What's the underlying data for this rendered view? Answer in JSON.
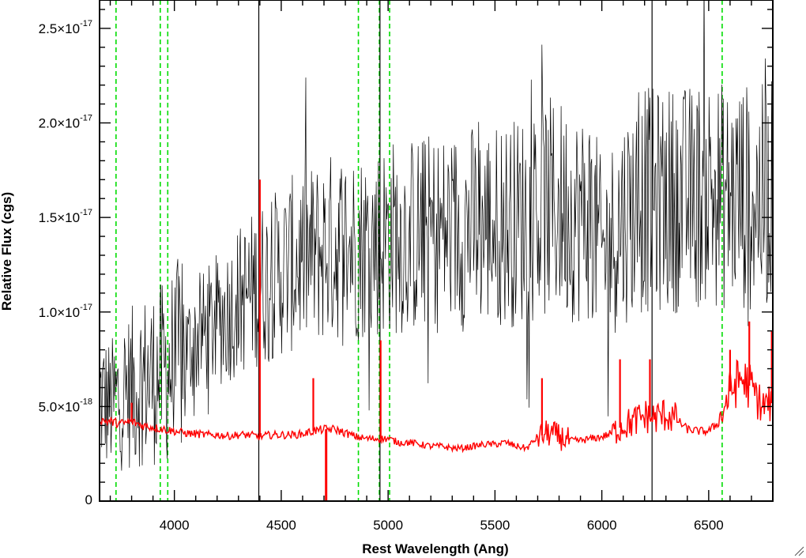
{
  "chart_data": {
    "type": "line",
    "title": "",
    "xlabel": "Rest Wavelength (Ang)",
    "ylabel": "Relative Flux (cgs)",
    "xlim": [
      3650,
      6800
    ],
    "ylim": [
      0,
      2.65e-17
    ],
    "x_ticks": [
      {
        "value": 4000,
        "label": "4000"
      },
      {
        "value": 4500,
        "label": "4500"
      },
      {
        "value": 5000,
        "label": "5000"
      },
      {
        "value": 5500,
        "label": "5500"
      },
      {
        "value": 6000,
        "label": "6000"
      },
      {
        "value": 6500,
        "label": "6500"
      }
    ],
    "y_ticks": [
      {
        "value": 0,
        "mantissa": "0",
        "exponent": ""
      },
      {
        "value": 5e-18,
        "mantissa": "5.0×10",
        "exponent": "-18"
      },
      {
        "value": 1e-17,
        "mantissa": "1.0×10",
        "exponent": "-17"
      },
      {
        "value": 1.5e-17,
        "mantissa": "1.5×10",
        "exponent": "-17"
      },
      {
        "value": 2e-17,
        "mantissa": "2.0×10",
        "exponent": "-17"
      },
      {
        "value": 2.5e-17,
        "mantissa": "2.5×10",
        "exponent": "-17"
      }
    ],
    "grid": false,
    "series": [
      {
        "color": "#000000",
        "style": "solid",
        "x": [
          3650,
          3700,
          3750,
          3800,
          3850,
          3900,
          3950,
          4000,
          4050,
          4100,
          4150,
          4200,
          4250,
          4300,
          4350,
          4400,
          4450,
          4500,
          4550,
          4600,
          4650,
          4700,
          4750,
          4800,
          4850,
          4900,
          4950,
          5000,
          5050,
          5100,
          5150,
          5200,
          5250,
          5300,
          5350,
          5400,
          5450,
          5500,
          5550,
          5600,
          5650,
          5700,
          5750,
          5800,
          5850,
          5900,
          5950,
          6000,
          6050,
          6100,
          6150,
          6200,
          6250,
          6300,
          6350,
          6400,
          6450,
          6500,
          6550,
          6600,
          6650,
          6700,
          6750,
          6800
        ],
        "y": [
          5.5e-18,
          5e-18,
          5.6e-18,
          6e-18,
          6.4e-18,
          6.6e-18,
          6.8e-18,
          7.3e-18,
          7.9e-18,
          8.5e-18,
          9e-18,
          9.5e-18,
          1e-17,
          1.06e-17,
          1.1e-17,
          1.15e-17,
          1.18e-17,
          1.22e-17,
          1.25e-17,
          1.28e-17,
          1.3e-17,
          1.33e-17,
          1.35e-17,
          1.36e-17,
          1.35e-17,
          1.36e-17,
          1.38e-17,
          1.4e-17,
          1.4e-17,
          1.4e-17,
          1.41e-17,
          1.42e-17,
          1.42e-17,
          1.43e-17,
          1.44e-17,
          1.45e-17,
          1.45e-17,
          1.46e-17,
          1.47e-17,
          1.48e-17,
          1.5e-17,
          1.52e-17,
          1.55e-17,
          1.55e-17,
          1.53e-17,
          1.5e-17,
          1.52e-17,
          1.3e-17,
          1.4e-17,
          1.5e-17,
          1.55e-17,
          1.6e-17,
          1.58e-17,
          1.6e-17,
          1.6e-17,
          1.6e-17,
          1.62e-17,
          1.65e-17,
          1.62e-17,
          1.6e-17,
          1.62e-17,
          1.6e-17,
          1.6e-17,
          1.62e-17
        ],
        "scatter_amplitude": 0.38,
        "spikes": [
          {
            "x": 4395,
            "y_min": 0,
            "y_max": 2.65e-17
          },
          {
            "x": 4962,
            "y_min": 0,
            "y_max": 2.65e-17
          },
          {
            "x": 6235,
            "y_min": 0,
            "y_max": 2.65e-17
          }
        ]
      },
      {
        "color": "#ff0000",
        "style": "solid",
        "x": [
          3650,
          3700,
          3750,
          3800,
          3850,
          3900,
          3950,
          4000,
          4050,
          4100,
          4150,
          4200,
          4250,
          4300,
          4350,
          4400,
          4450,
          4500,
          4550,
          4600,
          4650,
          4700,
          4750,
          4800,
          4850,
          4900,
          4950,
          5000,
          5050,
          5100,
          5150,
          5200,
          5250,
          5300,
          5350,
          5400,
          5450,
          5500,
          5550,
          5600,
          5650,
          5700,
          5750,
          5800,
          5850,
          5900,
          5950,
          6000,
          6050,
          6100,
          6150,
          6200,
          6250,
          6300,
          6350,
          6400,
          6450,
          6500,
          6550,
          6600,
          6650,
          6700,
          6750,
          6800
        ],
        "y": [
          4.3e-18,
          4.2e-18,
          4.1e-18,
          4.2e-18,
          4e-18,
          3.9e-18,
          3.8e-18,
          3.7e-18,
          3.6e-18,
          3.55e-18,
          3.5e-18,
          3.5e-18,
          3.45e-18,
          3.5e-18,
          3.5e-18,
          3.4e-18,
          3.5e-18,
          3.5e-18,
          3.5e-18,
          3.55e-18,
          3.7e-18,
          3.8e-18,
          3.8e-18,
          3.6e-18,
          3.4e-18,
          3.3e-18,
          3.3e-18,
          3.3e-18,
          3.1e-18,
          3.1e-18,
          3e-18,
          2.9e-18,
          2.9e-18,
          2.8e-18,
          2.8e-18,
          2.9e-18,
          3e-18,
          3e-18,
          3.1e-18,
          2.9e-18,
          2.8e-18,
          3.4e-18,
          3.6e-18,
          3.4e-18,
          3.2e-18,
          3.2e-18,
          3.3e-18,
          3.4e-18,
          3.6e-18,
          4e-18,
          4.2e-18,
          4.5e-18,
          4.4e-18,
          4.6e-18,
          4.3e-18,
          3.8e-18,
          3.7e-18,
          3.7e-18,
          4.2e-18,
          5.8e-18,
          6.5e-18,
          6e-18,
          5e-18,
          5.2e-18
        ],
        "scatter_amplitude": 0.06,
        "emission_lines": [
          {
            "x": 3800,
            "y": 5.2e-18
          },
          {
            "x": 4400,
            "y": 1.7e-17
          },
          {
            "x": 4650,
            "y": 6.5e-18
          },
          {
            "x": 4965,
            "y": 8.5e-18
          },
          {
            "x": 5720,
            "y": 6.5e-18
          },
          {
            "x": 6085,
            "y": 7.5e-18
          },
          {
            "x": 6225,
            "y": 7.5e-18
          },
          {
            "x": 6600,
            "y": 8e-18
          },
          {
            "x": 6690,
            "y": 9.5e-18
          },
          {
            "x": 6795,
            "y": 9e-18
          }
        ],
        "absorption_lines": [
          {
            "x": 4710,
            "y": 0
          }
        ]
      }
    ],
    "reference_lines": {
      "color": "#00dd00",
      "style": "dashed",
      "x": [
        3727,
        3934,
        3969,
        4861,
        4959,
        5007,
        6563
      ]
    },
    "colors": {
      "observed": "#000000",
      "model": "#ff0000",
      "markers": "#00dd00"
    }
  }
}
